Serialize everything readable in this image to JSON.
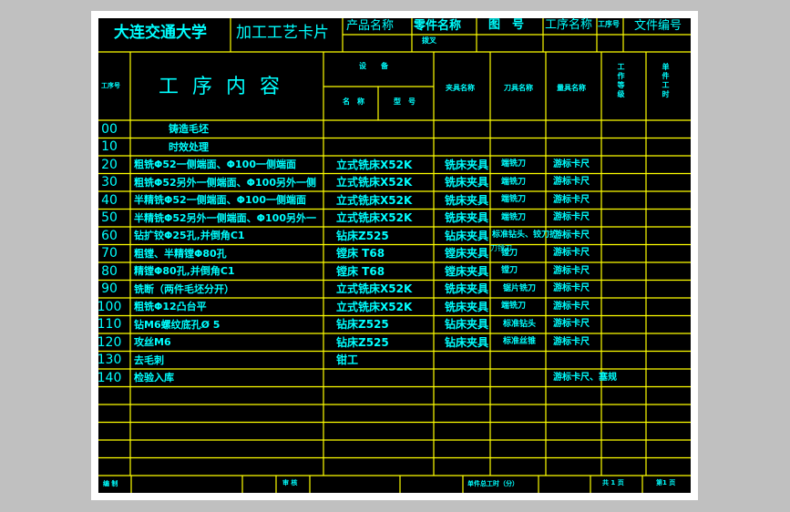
{
  "colors": {
    "line": "#ffff00",
    "text": "#00ffff",
    "sheet": "#000000",
    "frame": "#ffffff",
    "background": "#c0c0c0"
  },
  "header": {
    "school": "大连交通大学",
    "card_title": "加工工艺卡片",
    "product_name_label": "产品名称",
    "part_name_label": "零件名称",
    "part_name_value": "拨叉",
    "drawing_no_label": "图　号",
    "process_name_label": "工序名称",
    "process_no_label": "工序号",
    "file_no_label": "文件编号"
  },
  "columns": {
    "step_no": "工序号",
    "content": "工 序 内 容",
    "equipment": "设　　备",
    "equip_name": "名　称",
    "equip_model": "型　号",
    "fixture": "夹具名称",
    "cutter": "刀具名称",
    "gauge": "量具名称",
    "grade": "工作等级",
    "unit_time": "单件工时"
  },
  "rows": [
    {
      "no": "00",
      "content": "铸造毛坯",
      "equip": "",
      "fixture": "",
      "cutter": "",
      "gauge": ""
    },
    {
      "no": "10",
      "content": "时效处理",
      "equip": "",
      "fixture": "",
      "cutter": "",
      "gauge": ""
    },
    {
      "no": "20",
      "content": "粗铣Φ52一侧端面、Φ100一侧端面",
      "equip": "立式铣床X52K",
      "fixture": "铣床夹具",
      "cutter": "端铣刀",
      "gauge": "游标卡尺"
    },
    {
      "no": "30",
      "content": "粗铣Φ52另外一侧端面、Φ100另外一侧",
      "equip": "立式铣床X52K",
      "fixture": "铣床夹具",
      "cutter": "端铣刀",
      "gauge": "游标卡尺"
    },
    {
      "no": "40",
      "content": "半精铣Φ52一侧端面、Φ100一侧端面",
      "equip": "立式铣床X52K",
      "fixture": "铣床夹具",
      "cutter": "端铣刀",
      "gauge": "游标卡尺"
    },
    {
      "no": "50",
      "content": "半精铣Φ52另外一侧端面、Φ100另外一",
      "equip": "立式铣床X52K",
      "fixture": "铣床夹具",
      "cutter": "端铣刀",
      "gauge": "游标卡尺"
    },
    {
      "no": "60",
      "content": "钻扩铰Φ25孔,并倒角C1",
      "equip": "钻床Z525",
      "fixture": "钻床夹具",
      "cutter": "标准钻头、铰刀扩",
      "gauge": "游标卡尺"
    },
    {
      "no": "70",
      "content": "粗镗、半精镗Φ80孔",
      "equip": "镗床 T68",
      "fixture": "镗床夹具",
      "cutter": "镗刀",
      "gauge": "游标卡尺"
    },
    {
      "no": "80",
      "content": "精镗Φ80孔,并倒角C1",
      "equip": "镗床 T68",
      "fixture": "镗床夹具",
      "cutter": "镗刀",
      "gauge": "游标卡尺"
    },
    {
      "no": "90",
      "content": "铣断（两件毛坯分开）",
      "equip": "立式铣床X52K",
      "fixture": "铣床夹具",
      "cutter": "锯片铣刀",
      "gauge": "游标卡尺"
    },
    {
      "no": "100",
      "content": "粗铣Φ12凸台平",
      "equip": "立式铣床X52K",
      "fixture": "铣床夹具",
      "cutter": "端铣刀",
      "gauge": "游标卡尺"
    },
    {
      "no": "110",
      "content": "钻M6螺纹底孔Ø 5",
      "equip": "钻床Z525",
      "fixture": "钻床夹具",
      "cutter": "标准钻头",
      "gauge": "游标卡尺"
    },
    {
      "no": "120",
      "content": "攻丝M6",
      "equip": "钻床Z525",
      "fixture": "钻床夹具",
      "cutter": "标准丝锥",
      "gauge": "游标卡尺"
    },
    {
      "no": "130",
      "content": "去毛刺",
      "equip": "钳工",
      "fixture": "",
      "cutter": "",
      "gauge": ""
    },
    {
      "no": "140",
      "content": "检验入库",
      "equip": "",
      "fixture": "",
      "cutter": "",
      "gauge": "游标卡尺、塞规"
    }
  ],
  "overlap_note": "刀镗刀",
  "footer": {
    "prepared": "编 制",
    "reviewed": "审 核",
    "total_time": "单件总工时（分）",
    "pages_total": "共 1 页",
    "page_no": "第1 页"
  }
}
